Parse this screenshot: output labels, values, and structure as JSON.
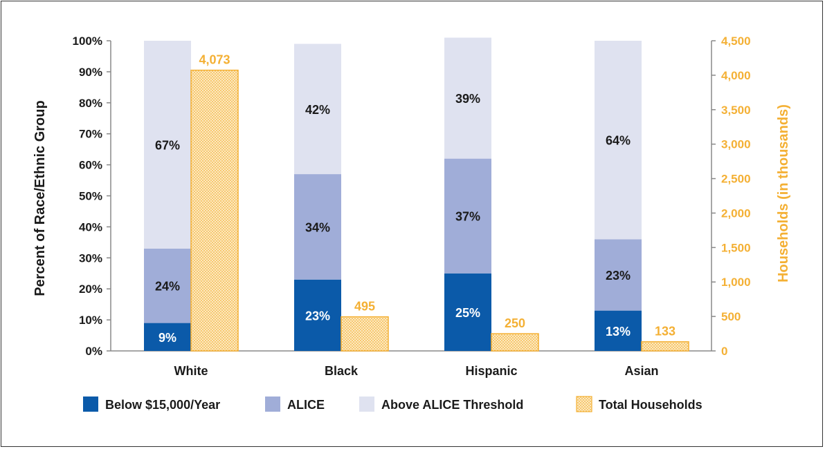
{
  "colors": {
    "below": "#0b5aa9",
    "alice": "#a0add8",
    "above": "#dfe2f0",
    "total": "#f4b034",
    "axis_left": "#1a1a1a",
    "axis_right": "#f4b034"
  },
  "chart_data": {
    "type": "bar",
    "categories": [
      "White",
      "Black",
      "Hispanic",
      "Asian"
    ],
    "series": [
      {
        "name": "Below $15,000/Year",
        "axis": "left",
        "values": [
          9,
          23,
          25,
          13
        ],
        "labels": [
          "9%",
          "23%",
          "25%",
          "13%"
        ]
      },
      {
        "name": "ALICE",
        "axis": "left",
        "values": [
          24,
          34,
          37,
          23
        ],
        "labels": [
          "24%",
          "34%",
          "37%",
          "23%"
        ]
      },
      {
        "name": "Above ALICE Threshold",
        "axis": "left",
        "values": [
          67,
          42,
          39,
          64
        ],
        "labels": [
          "67%",
          "42%",
          "39%",
          "64%"
        ]
      },
      {
        "name": "Total Households",
        "axis": "right",
        "values": [
          4073,
          495,
          250,
          133
        ],
        "labels": [
          "4,073",
          "495",
          "250",
          "133"
        ]
      }
    ],
    "ylabel": "Percent of Race/Ethnic Group",
    "ylim": [
      0,
      100
    ],
    "yticks": [
      "0%",
      "10%",
      "20%",
      "30%",
      "40%",
      "50%",
      "60%",
      "70%",
      "80%",
      "90%",
      "100%"
    ],
    "y2label": "Households (in thousands)",
    "y2lim": [
      0,
      4500
    ],
    "y2ticks": [
      "0",
      "500",
      "1,000",
      "1,500",
      "2,000",
      "2,500",
      "3,000",
      "3,500",
      "4,000",
      "4,500"
    ],
    "legend_position": "bottom",
    "grid": false
  }
}
